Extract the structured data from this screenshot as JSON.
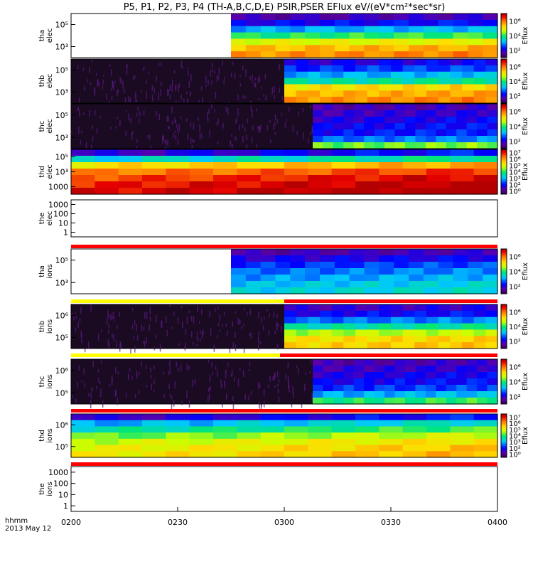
{
  "chart_data": {
    "type": "heatmap",
    "title": "P5, P1, P2, P3, P4 (TH-A,B,C,D,E) PSIR,PSER EFlux eV/(eV*cm²*sec*sr)",
    "x_axis": {
      "range": [
        "02:00",
        "04:00"
      ],
      "tick_labels": [
        "0200",
        "0230",
        "0300",
        "0330",
        "0400"
      ],
      "label_line1": "hhmm",
      "label_line2": "2013 May 12"
    },
    "colorbar_label": "Eflux",
    "panels": [
      {
        "id": "tha-elec",
        "ylabel": [
          "tha",
          "elec"
        ],
        "ytick_labels": [
          "10⁵",
          "10³"
        ],
        "log_y": true,
        "colorbar_ticks": [
          "10⁶",
          "10⁴",
          "10²"
        ],
        "data_start_hhmm": "02:45",
        "description": "Low values above ~10^4 eV, moderate-high (yellow/orange) near 10^2-10^3 eV",
        "palette_levels": [
          0.12,
          0.2,
          0.35,
          0.5,
          0.65,
          0.75,
          0.8
        ],
        "quality_bar": null
      },
      {
        "id": "thb-elec",
        "ylabel": [
          "thb",
          "elec"
        ],
        "ytick_labels": [
          "10⁵",
          "10³"
        ],
        "log_y": true,
        "colorbar_ticks": [
          "10⁶",
          "10⁴",
          "10²"
        ],
        "data_start_hhmm": "03:00",
        "description": "Noisy background before 03:00 then blue at high energies, yellow/orange band at low energies",
        "palette_levels": [
          0.18,
          0.25,
          0.35,
          0.45,
          0.7,
          0.76,
          0.8
        ],
        "quality_bar": null
      },
      {
        "id": "thc-elec",
        "ylabel": [
          "thc",
          "elec"
        ],
        "ytick_labels": [
          "10⁵",
          "10³"
        ],
        "log_y": true,
        "colorbar_ticks": [
          "10⁶",
          "10⁴",
          "10²"
        ],
        "data_start_hhmm": "03:08",
        "description": "Noisy background, gap ~03:04-03:08, then mostly blue with yellow near low energies",
        "palette_levels": [
          0.12,
          0.15,
          0.18,
          0.2,
          0.22,
          0.3,
          0.55
        ],
        "quality_bar": null
      },
      {
        "id": "thd-elec",
        "ylabel": [
          "thd",
          "elec"
        ],
        "ytick_labels": [
          "10⁵",
          "10³",
          "1000"
        ],
        "log_y": true,
        "colorbar_ticks": [
          "10⁷",
          "10⁶",
          "10⁵",
          "10⁴",
          "10³",
          "10²",
          "10⁰"
        ],
        "data_start_hhmm": "02:00",
        "description": "Strong red/orange flux at most energies, blue/green at highest energies",
        "palette_levels": [
          0.15,
          0.4,
          0.7,
          0.82,
          0.88,
          0.92,
          0.95
        ],
        "quality_bar": null
      },
      {
        "id": "the-elec",
        "ylabel": [
          "the",
          "elec"
        ],
        "ytick_labels": [
          "1000",
          "100",
          "10",
          "1"
        ],
        "log_y": true,
        "colorbar_ticks": [],
        "data_start_hhmm": null,
        "description": "Empty panel",
        "palette_levels": [],
        "quality_bar": {
          "segments": [
            {
              "from": 0,
              "to": 1,
              "color": "#ff0000"
            }
          ]
        }
      },
      {
        "id": "tha-ions",
        "ylabel": [
          "tha",
          "ions"
        ],
        "ytick_labels": [
          "10⁵",
          "10³"
        ],
        "log_y": true,
        "colorbar_ticks": [
          "10⁶",
          "10⁴",
          "10²"
        ],
        "data_start_hhmm": "02:45",
        "description": "Mostly blue/cyan ion flux",
        "palette_levels": [
          0.12,
          0.18,
          0.25,
          0.3,
          0.34,
          0.38,
          0.4
        ],
        "quality_bar": {
          "segments": [
            {
              "from": 0,
              "to": 0.5,
              "color": "#ffff00"
            },
            {
              "from": 0.5,
              "to": 1,
              "color": "#ff0000"
            }
          ]
        }
      },
      {
        "id": "thb-ions",
        "ylabel": [
          "thb",
          "ions"
        ],
        "ytick_labels": [
          "10⁶",
          "10⁵"
        ],
        "log_y": true,
        "colorbar_ticks": [
          "10⁶",
          "10⁴",
          "10²"
        ],
        "data_start_hhmm": "03:00",
        "description": "Noisy background before 03:00, then blue/cyan with yellow band at low energies",
        "palette_levels": [
          0.15,
          0.2,
          0.3,
          0.45,
          0.6,
          0.7,
          0.72
        ],
        "quality_bar": {
          "segments": [
            {
              "from": 0,
              "to": 0.49,
              "color": "#ffff00"
            },
            {
              "from": 0.49,
              "to": 1,
              "color": "#ff0000"
            }
          ]
        }
      },
      {
        "id": "thc-ions",
        "ylabel": [
          "thc",
          "ions"
        ],
        "ytick_labels": [
          "10⁶",
          "10⁵"
        ],
        "log_y": true,
        "colorbar_ticks": [
          "10⁶",
          "10⁴",
          "10²"
        ],
        "data_start_hhmm": "03:08",
        "description": "Noisy background, gap ~03:04-03:08, then blue/cyan with green-yellow low",
        "palette_levels": [
          0.12,
          0.15,
          0.18,
          0.2,
          0.25,
          0.35,
          0.5
        ],
        "quality_bar": {
          "segments": [
            {
              "from": 0,
              "to": 1,
              "color": "#ff0000"
            }
          ]
        }
      },
      {
        "id": "thd-ions",
        "ylabel": [
          "thd",
          "ions"
        ],
        "ytick_labels": [
          "10⁶",
          "10⁵"
        ],
        "log_y": true,
        "colorbar_ticks": [
          "10⁷",
          "10⁶",
          "10⁵",
          "10⁴",
          "10³",
          "10²",
          "10⁰"
        ],
        "data_start_hhmm": "02:00",
        "description": "Green/yellow rising to orange/red toward 04:00",
        "palette_levels": [
          0.15,
          0.35,
          0.45,
          0.55,
          0.62,
          0.66,
          0.68
        ],
        "quality_bar": {
          "segments": [
            {
              "from": 0,
              "to": 1,
              "color": "#ff0000"
            }
          ]
        }
      },
      {
        "id": "the-ions",
        "ylabel": [
          "the",
          "ions"
        ],
        "ytick_labels": [
          "1000",
          "100",
          "10",
          "1"
        ],
        "log_y": true,
        "colorbar_ticks": [],
        "data_start_hhmm": null,
        "description": "Empty panel",
        "palette_levels": [],
        "quality_bar": null
      }
    ]
  }
}
